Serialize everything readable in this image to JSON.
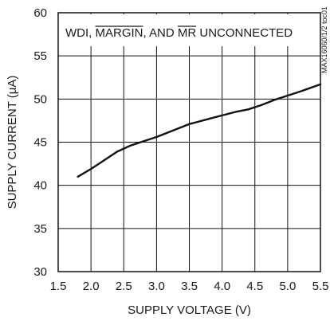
{
  "chart_data": {
    "type": "line",
    "annotation_parts": [
      "WDI, ",
      "MARGIN",
      ", AND ",
      "MR",
      " UNCONNECTED"
    ],
    "overlined_parts": [
      1,
      3
    ],
    "figure_id": "MAX16060/1/2 toc01",
    "xlabel": "SUPPLY VOLTAGE (V)",
    "ylabel": "SUPPLY CURRENT (μA)",
    "xlim": [
      1.5,
      5.5
    ],
    "ylim": [
      30,
      60
    ],
    "x_ticks": [
      1.5,
      2.0,
      2.5,
      3.0,
      3.5,
      4.0,
      4.5,
      5.0,
      5.5
    ],
    "x_tick_labels": [
      "1.5",
      "2.0",
      "2.5",
      "3.0",
      "3.5",
      "4.0",
      "4.5",
      "5.0",
      "5.5"
    ],
    "y_ticks": [
      30,
      35,
      40,
      45,
      50,
      55,
      60
    ],
    "y_tick_labels": [
      "30",
      "35",
      "40",
      "45",
      "50",
      "55",
      "60"
    ],
    "grid": true,
    "colors": {
      "line": "#111111",
      "grid": "#111111",
      "frame": "#111111"
    },
    "series": [
      {
        "x": [
          1.8,
          2.0,
          2.2,
          2.4,
          2.6,
          2.8,
          3.0,
          3.2,
          3.4,
          3.5,
          3.6,
          3.8,
          4.0,
          4.2,
          4.4,
          4.6,
          4.8,
          5.0,
          5.2,
          5.5
        ],
        "y": [
          41.0,
          41.9,
          42.9,
          43.9,
          44.6,
          45.1,
          45.6,
          46.2,
          46.8,
          47.1,
          47.3,
          47.7,
          48.1,
          48.5,
          48.8,
          49.3,
          49.9,
          50.4,
          50.9,
          51.7
        ]
      }
    ]
  }
}
